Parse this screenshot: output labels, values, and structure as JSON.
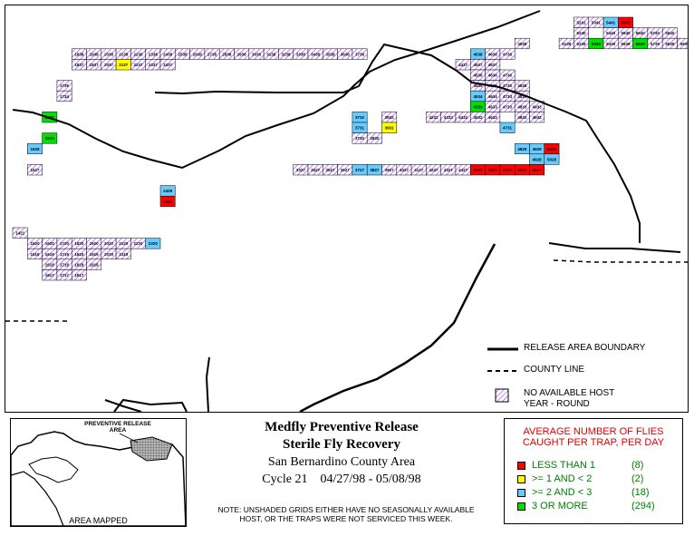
{
  "map": {
    "colors": {
      "red": "#ff0000",
      "yellow": "#ffff00",
      "cyan": "#66ccff",
      "green": "#00e000",
      "hatch": "#9b30ff",
      "line": "#000000"
    },
    "legend_lines": [
      {
        "id": "release-boundary",
        "label": "RELEASE AREA BOUNDARY",
        "style": "solid"
      },
      {
        "id": "county-line",
        "label": "COUNTY LINE",
        "style": "dashed"
      },
      {
        "id": "no-host",
        "label": "NO AVAILABLE HOST",
        "label2": "YEAR - ROUND",
        "style": "hatch"
      }
    ]
  },
  "title": {
    "line1": "Medfly Preventive Release",
    "line2": "Sterile Fly Recovery",
    "line3": "San Bernardino County Area",
    "line4": "Cycle 21    04/27/98 - 05/08/98"
  },
  "note": {
    "line1": "NOTE: UNSHADED GRIDS EITHER HAVE NO SEASONALLY AVAILABLE",
    "line2": "HOST, OR THE TRAPS WERE NOT SERVICED THIS WEEK."
  },
  "inset": {
    "label_top": "PREVENTIVE RELEASE AREA",
    "label_bottom": "AREA MAPPED"
  },
  "fly_legend": {
    "title_line1": "AVERAGE NUMBER OF FLIES",
    "title_line2": "CAUGHT PER TRAP, PER DAY",
    "items": [
      {
        "label": "LESS THAN 1",
        "count": "(8)",
        "color": "#ff0000"
      },
      {
        "label": ">= 1 AND < 2",
        "count": "(2)",
        "color": "#ffff00"
      },
      {
        "label": ">= 2 AND < 3",
        "count": "(18)",
        "color": "#66ccff"
      },
      {
        "label": "3 OR MORE",
        "count": "(294)",
        "color": "#00e000"
      }
    ]
  },
  "grid_cells": [
    {
      "label": "5541",
      "fill": "red"
    },
    {
      "label": "5441",
      "fill": "cyan"
    },
    {
      "label": "5341",
      "fill": "hatch"
    },
    {
      "label": "5241",
      "fill": "hatch"
    },
    {
      "label": "5240",
      "fill": "hatch"
    },
    {
      "label": "5440",
      "fill": "hatch"
    },
    {
      "label": "5540",
      "fill": "hatch"
    },
    {
      "label": "5640",
      "fill": "hatch"
    },
    {
      "label": "5740",
      "fill": "hatch"
    },
    {
      "label": "5840",
      "fill": "hatch"
    },
    {
      "label": "5139",
      "fill": "hatch"
    },
    {
      "label": "5239",
      "fill": "hatch"
    },
    {
      "label": "5339",
      "fill": "green"
    },
    {
      "label": "5439",
      "fill": "hatch"
    },
    {
      "label": "5539",
      "fill": "hatch"
    },
    {
      "label": "5639",
      "fill": "green"
    },
    {
      "label": "5739",
      "fill": "hatch"
    },
    {
      "label": "5839",
      "fill": "hatch"
    },
    {
      "label": "5939",
      "fill": "hatch"
    },
    {
      "label": "4839",
      "fill": "hatch"
    },
    {
      "label": "1838",
      "fill": "hatch"
    },
    {
      "label": "1938",
      "fill": "hatch"
    },
    {
      "label": "2038",
      "fill": "hatch"
    },
    {
      "label": "2138",
      "fill": "hatch"
    },
    {
      "label": "2238",
      "fill": "hatch"
    },
    {
      "label": "2338",
      "fill": "hatch"
    },
    {
      "label": "2438",
      "fill": "hatch"
    },
    {
      "label": "2538",
      "fill": "hatch"
    },
    {
      "label": "2638",
      "fill": "hatch"
    },
    {
      "label": "2738",
      "fill": "hatch"
    },
    {
      "label": "2838",
      "fill": "hatch"
    },
    {
      "label": "2938",
      "fill": "hatch"
    },
    {
      "label": "3038",
      "fill": "hatch"
    },
    {
      "label": "3138",
      "fill": "hatch"
    },
    {
      "label": "3238",
      "fill": "hatch"
    },
    {
      "label": "3338",
      "fill": "hatch"
    },
    {
      "label": "3438",
      "fill": "hatch"
    },
    {
      "label": "3538",
      "fill": "hatch"
    },
    {
      "label": "3638",
      "fill": "hatch"
    },
    {
      "label": "3738",
      "fill": "hatch"
    },
    {
      "label": "4538",
      "fill": "cyan"
    },
    {
      "label": "4638",
      "fill": "hatch"
    },
    {
      "label": "4738",
      "fill": "hatch"
    },
    {
      "label": "1837",
      "fill": "hatch"
    },
    {
      "label": "1937",
      "fill": "hatch"
    },
    {
      "label": "2037",
      "fill": "hatch"
    },
    {
      "label": "2137",
      "fill": "yellow"
    },
    {
      "label": "2237",
      "fill": "hatch"
    },
    {
      "label": "2337",
      "fill": "hatch"
    },
    {
      "label": "2437",
      "fill": "hatch"
    },
    {
      "label": "4437",
      "fill": "hatch"
    },
    {
      "label": "4537",
      "fill": "hatch"
    },
    {
      "label": "4637",
      "fill": "hatch"
    },
    {
      "label": "4536",
      "fill": "hatch"
    },
    {
      "label": "4636",
      "fill": "hatch"
    },
    {
      "label": "4736",
      "fill": "hatch"
    },
    {
      "label": "1735",
      "fill": "hatch"
    },
    {
      "label": "4535",
      "fill": "hatch"
    },
    {
      "label": "4635",
      "fill": "hatch"
    },
    {
      "label": "4735",
      "fill": "hatch"
    },
    {
      "label": "4835",
      "fill": "hatch"
    },
    {
      "label": "1734",
      "fill": "hatch"
    },
    {
      "label": "4534",
      "fill": "cyan"
    },
    {
      "label": "4634",
      "fill": "hatch"
    },
    {
      "label": "4734",
      "fill": "hatch"
    },
    {
      "label": "4834",
      "fill": "hatch"
    },
    {
      "label": "4533",
      "fill": "green"
    },
    {
      "label": "4633",
      "fill": "hatch"
    },
    {
      "label": "4733",
      "fill": "hatch"
    },
    {
      "label": "4833",
      "fill": "hatch"
    },
    {
      "label": "4933",
      "fill": "hatch"
    },
    {
      "label": "1632",
      "fill": "green"
    },
    {
      "label": "3732",
      "fill": "cyan"
    },
    {
      "label": "3932",
      "fill": "hatch"
    },
    {
      "label": "4232",
      "fill": "hatch"
    },
    {
      "label": "4332",
      "fill": "hatch"
    },
    {
      "label": "4432",
      "fill": "hatch"
    },
    {
      "label": "4532",
      "fill": "hatch"
    },
    {
      "label": "4632",
      "fill": "hatch"
    },
    {
      "label": "4832",
      "fill": "hatch"
    },
    {
      "label": "4932",
      "fill": "hatch"
    },
    {
      "label": "3931",
      "fill": "yellow"
    },
    {
      "label": "3731",
      "fill": "cyan"
    },
    {
      "label": "4731",
      "fill": "cyan"
    },
    {
      "label": "1630",
      "fill": "green"
    },
    {
      "label": "3730",
      "fill": "hatch"
    },
    {
      "label": "3830",
      "fill": "hatch"
    },
    {
      "label": "1529",
      "fill": "cyan"
    },
    {
      "label": "4829",
      "fill": "cyan"
    },
    {
      "label": "4929",
      "fill": "cyan"
    },
    {
      "label": "5029",
      "fill": "red"
    },
    {
      "label": "4928",
      "fill": "cyan"
    },
    {
      "label": "5028",
      "fill": "cyan"
    },
    {
      "label": "1527",
      "fill": "hatch"
    },
    {
      "label": "3327",
      "fill": "hatch"
    },
    {
      "label": "3427",
      "fill": "hatch"
    },
    {
      "label": "3527",
      "fill": "hatch"
    },
    {
      "label": "3627",
      "fill": "hatch"
    },
    {
      "label": "3727",
      "fill": "cyan"
    },
    {
      "label": "3827",
      "fill": "cyan"
    },
    {
      "label": "3927",
      "fill": "hatch"
    },
    {
      "label": "4027",
      "fill": "hatch"
    },
    {
      "label": "4127",
      "fill": "hatch"
    },
    {
      "label": "4227",
      "fill": "hatch"
    },
    {
      "label": "4327",
      "fill": "hatch"
    },
    {
      "label": "4427",
      "fill": "hatch"
    },
    {
      "label": "4527",
      "fill": "red"
    },
    {
      "label": "4627",
      "fill": "red"
    },
    {
      "label": "4727",
      "fill": "red"
    },
    {
      "label": "4827",
      "fill": "red"
    },
    {
      "label": "4927",
      "fill": "red"
    },
    {
      "label": "2424",
      "fill": "red"
    },
    {
      "label": "2425",
      "fill": "cyan"
    },
    {
      "label": "1421",
      "fill": "hatch"
    },
    {
      "label": "1920",
      "fill": "hatch"
    },
    {
      "label": "2020",
      "fill": "hatch"
    },
    {
      "label": "2120",
      "fill": "hatch"
    },
    {
      "label": "2220",
      "fill": "hatch"
    },
    {
      "label": "2320",
      "fill": "cyan"
    },
    {
      "label": "1520",
      "fill": "hatch"
    },
    {
      "label": "1620",
      "fill": "hatch"
    },
    {
      "label": "1720",
      "fill": "hatch"
    },
    {
      "label": "1820",
      "fill": "hatch"
    },
    {
      "label": "1519",
      "fill": "hatch"
    },
    {
      "label": "1619",
      "fill": "hatch"
    },
    {
      "label": "1719",
      "fill": "hatch"
    },
    {
      "label": "1819",
      "fill": "hatch"
    },
    {
      "label": "1919",
      "fill": "hatch"
    },
    {
      "label": "2019",
      "fill": "hatch"
    },
    {
      "label": "2119",
      "fill": "hatch"
    },
    {
      "label": "1618",
      "fill": "hatch"
    },
    {
      "label": "1718",
      "fill": "hatch"
    },
    {
      "label": "1818",
      "fill": "hatch"
    },
    {
      "label": "1918",
      "fill": "hatch"
    },
    {
      "label": "1617",
      "fill": "hatch"
    },
    {
      "label": "1717",
      "fill": "hatch"
    },
    {
      "label": "1817",
      "fill": "hatch"
    }
  ]
}
